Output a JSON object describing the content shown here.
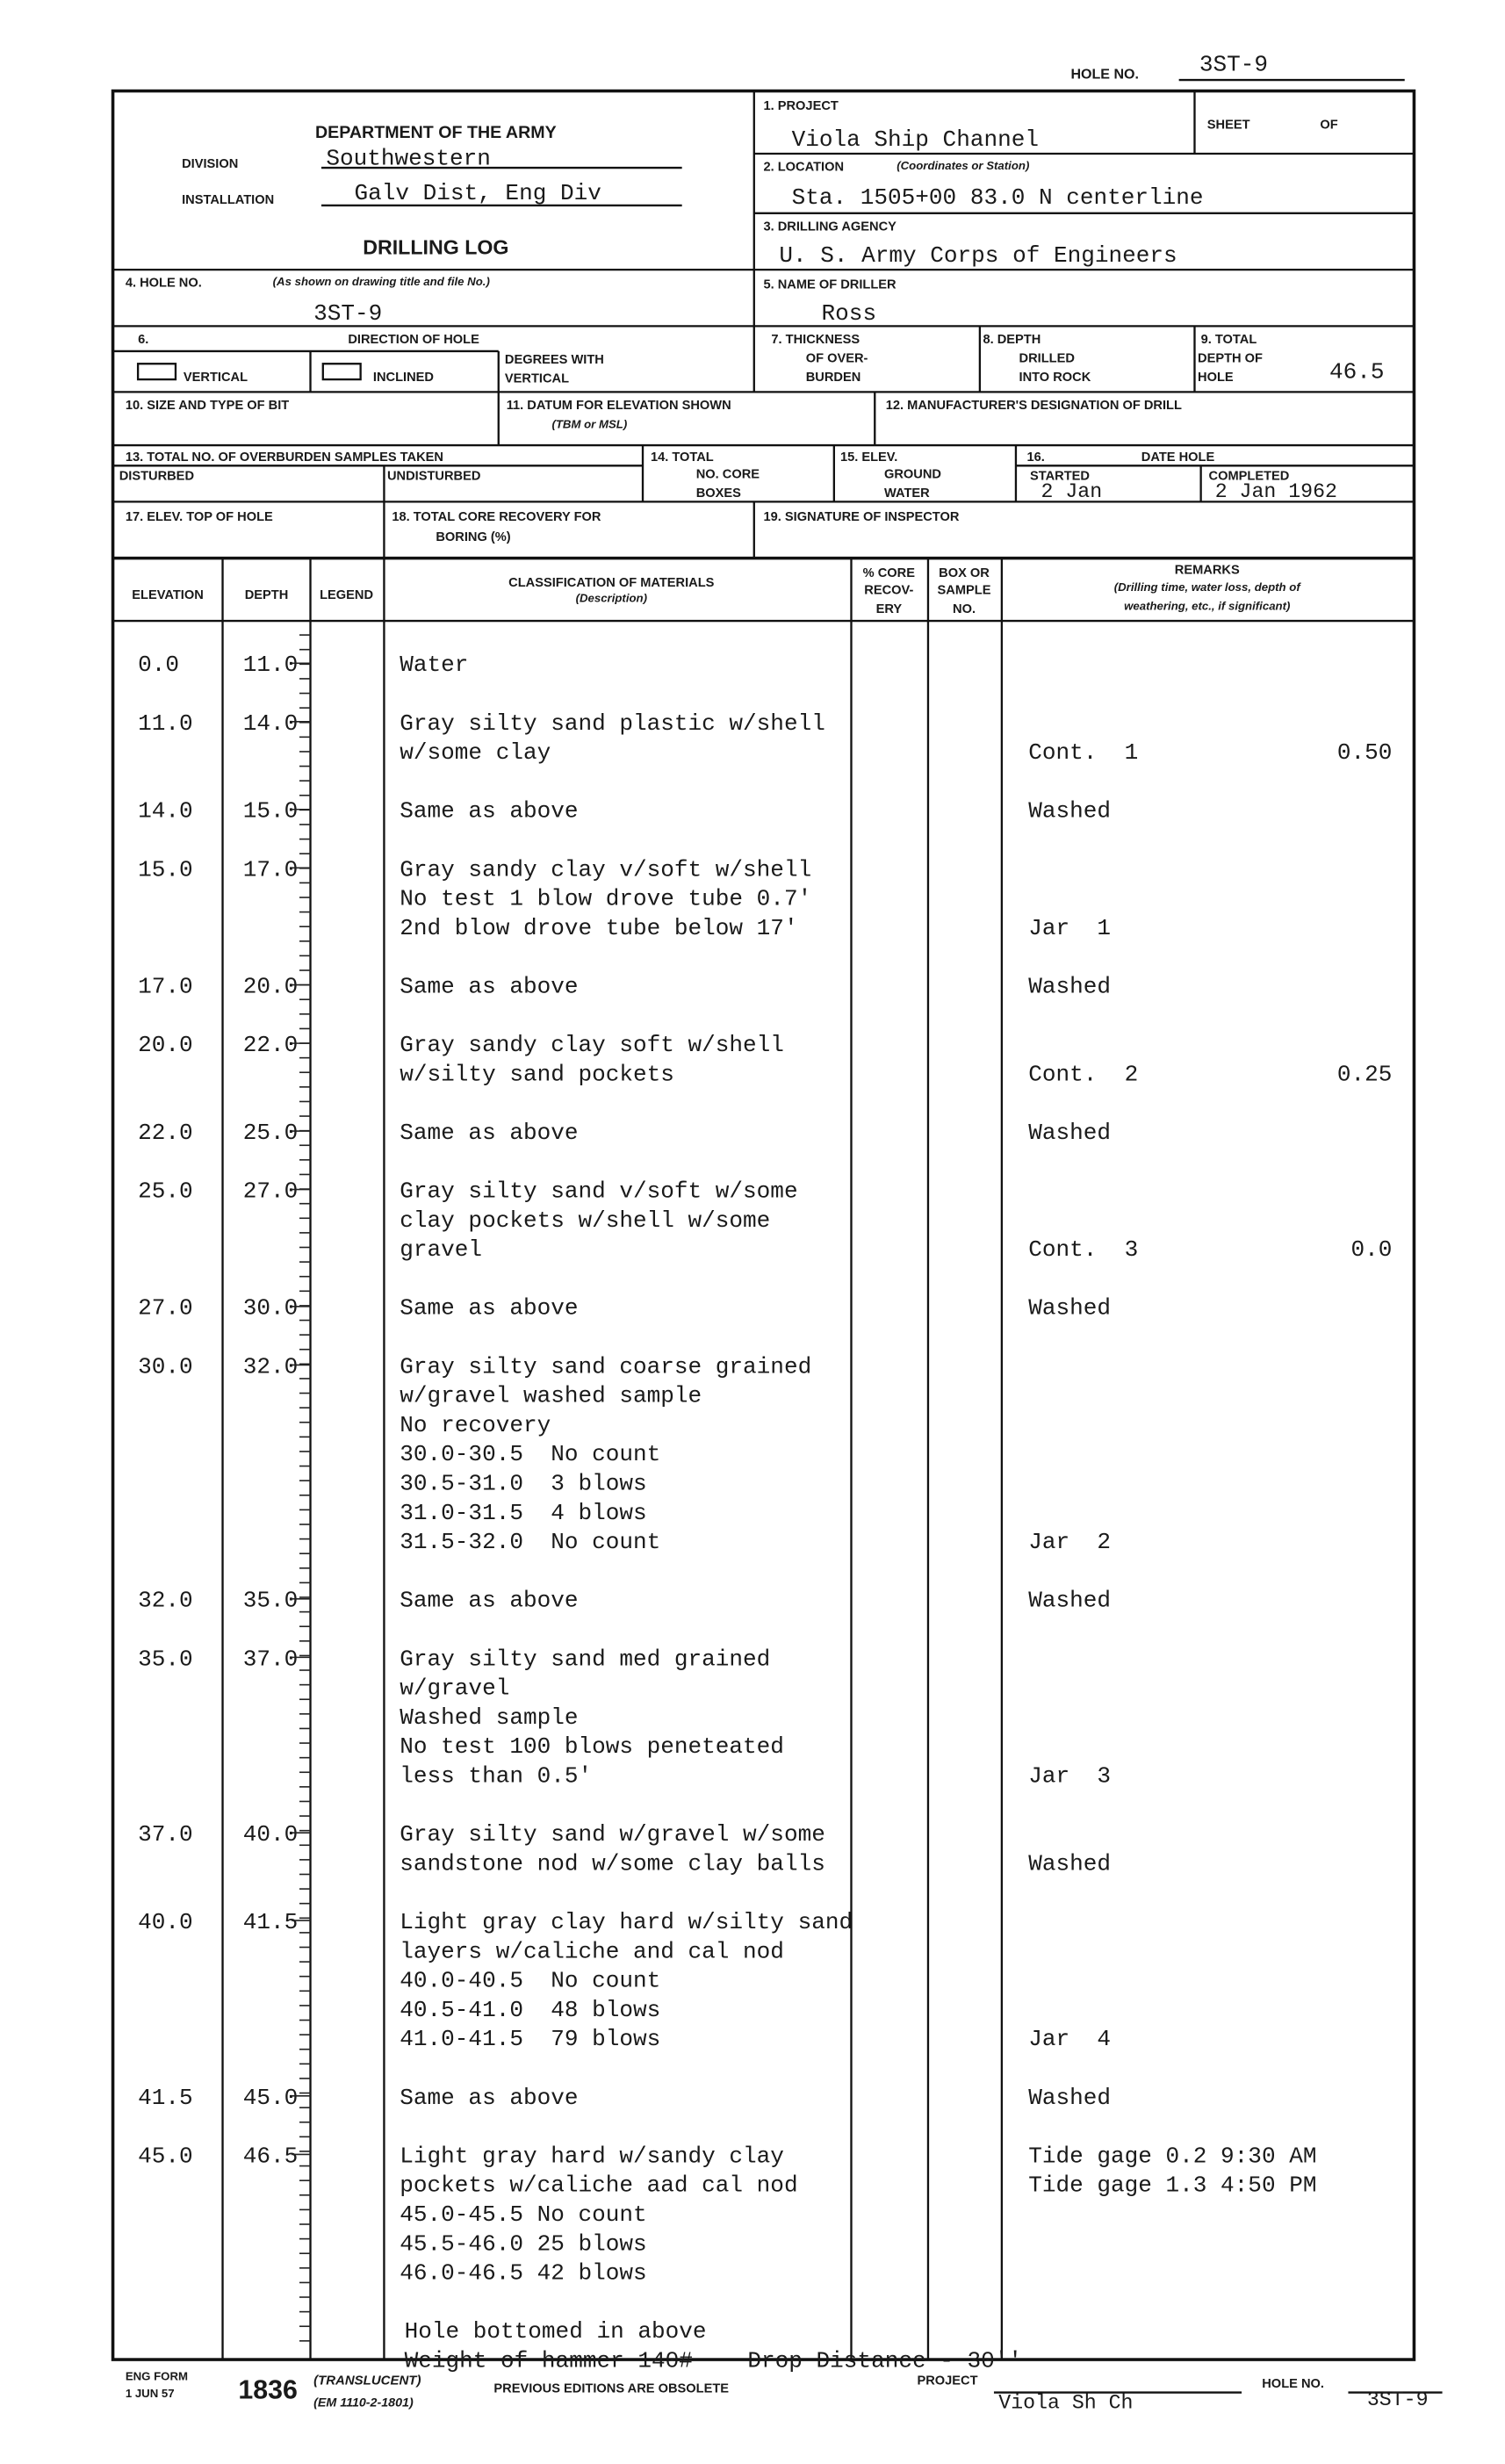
{
  "header": {
    "hole_no_label": "HOLE NO.",
    "hole_no": "3ST-9"
  },
  "form": {
    "department": "DEPARTMENT OF THE ARMY",
    "division_label": "DIVISION",
    "division": "Southwestern",
    "installation_label": "INSTALLATION",
    "installation": "Galv Dist, Eng Div",
    "title": "DRILLING LOG",
    "project_label": "1. PROJECT",
    "project": "Viola Ship Channel",
    "sheet_label": "SHEET",
    "of_label": "OF",
    "location_label": "2. LOCATION",
    "location_note": "(Coordinates or Station)",
    "location": "Sta. 1505+00 83.0 N centerline",
    "agency_label": "3. DRILLING AGENCY",
    "agency": "U. S. Army Corps of Engineers",
    "hole_no_label": "4. HOLE NO.",
    "hole_no_note": "(As shown on drawing title and file No.)",
    "hole_no": "3ST-9",
    "driller_label": "5. NAME OF DRILLER",
    "driller": "Ross",
    "direction_number": "6.",
    "direction_label": "DIRECTION OF HOLE",
    "vertical_label": "VERTICAL",
    "inclined_label": "INCLINED",
    "degrees_label": [
      "DEGREES WITH",
      "VERTICAL"
    ],
    "thickness_label": [
      "7. THICKNESS",
      "OF OVER-",
      "BURDEN"
    ],
    "depth_rock_label": [
      "8. DEPTH",
      "DRILLED",
      "INTO ROCK"
    ],
    "total_depth_label": [
      "9. TOTAL",
      "DEPTH OF",
      "HOLE"
    ],
    "total_depth": "46.5",
    "bit_label": "10. SIZE AND TYPE OF BIT",
    "datum_label": "11. DATUM FOR ELEVATION SHOWN",
    "datum_note": "(TBM or MSL)",
    "drill_label": "12. MANUFACTURER'S DESIGNATION OF DRILL",
    "samples_label": "13. TOTAL NO. OF OVERBURDEN SAMPLES TAKEN",
    "disturbed_label": "DISTURBED",
    "undisturbed_label": "UNDISTURBED",
    "core_boxes_label": [
      "14. TOTAL",
      "NO. CORE",
      "BOXES"
    ],
    "ground_water_label": [
      "15. ELEV.",
      "GROUND",
      "WATER"
    ],
    "date_number": "16.",
    "date_label": "DATE HOLE",
    "started_label": "STARTED",
    "started": "2 Jan",
    "completed_label": "COMPLETED",
    "completed": "2 Jan 1962",
    "elev_top_label": "17. ELEV. TOP OF HOLE",
    "core_recovery_label": [
      "18. TOTAL CORE RECOVERY FOR",
      "BORING (%)"
    ],
    "signature_label": "19. SIGNATURE OF INSPECTOR"
  },
  "columns": {
    "elevation": "ELEVATION",
    "depth": "DEPTH",
    "legend": "LEGEND",
    "classification": "CLASSIFICATION OF MATERIALS",
    "classification_note": "(Description)",
    "core_recovery": [
      "% CORE",
      "RECOV-",
      "ERY"
    ],
    "box": [
      "BOX OR",
      "SAMPLE",
      "NO."
    ],
    "remarks": "REMARKS",
    "remarks_note": [
      "(Drilling time, water loss, depth of",
      "weathering, etc., if significant)"
    ]
  },
  "log": {
    "rows": [
      {
        "elevation": "0.0",
        "depth": "11.0",
        "description": [
          "Water"
        ]
      },
      {
        "elevation": "11.0",
        "depth": "14.0",
        "description": [
          "Gray silty sand plastic w/shell",
          "w/some clay"
        ],
        "remarks": [
          "Cont.  1"
        ],
        "remark_value": "0.50"
      },
      {
        "elevation": "14.0",
        "depth": "15.0",
        "description": [
          "Same as above"
        ],
        "remarks": [
          "Washed"
        ]
      },
      {
        "elevation": "15.0",
        "depth": "17.0",
        "description": [
          "Gray sandy clay v/soft w/shell",
          "No test 1 blow drove tube 0.7'",
          "2nd blow drove tube below 17'"
        ],
        "remarks": [
          "Jar  1"
        ]
      },
      {
        "elevation": "17.0",
        "depth": "20.0",
        "description": [
          "Same as above"
        ],
        "remarks": [
          "Washed"
        ]
      },
      {
        "elevation": "20.0",
        "depth": "22.0",
        "description": [
          "Gray sandy clay soft w/shell",
          "w/silty sand pockets"
        ],
        "remarks": [
          "Cont.  2"
        ],
        "remark_value": "0.25"
      },
      {
        "elevation": "22.0",
        "depth": "25.0",
        "description": [
          "Same as above"
        ],
        "remarks": [
          "Washed"
        ]
      },
      {
        "elevation": "25.0",
        "depth": "27.0",
        "description": [
          "Gray silty sand v/soft w/some",
          "clay pockets w/shell w/some",
          "gravel"
        ],
        "remarks": [
          "Cont.  3"
        ],
        "remark_value": "0.0"
      },
      {
        "elevation": "27.0",
        "depth": "30.0",
        "description": [
          "Same as above"
        ],
        "remarks": [
          "Washed"
        ]
      },
      {
        "elevation": "30.0",
        "depth": "32.0",
        "description": [
          "Gray silty sand coarse grained",
          "w/gravel washed sample",
          "No recovery",
          "30.0-30.5  No count",
          "30.5-31.0  3 blows",
          "31.0-31.5  4 blows",
          "31.5-32.0  No count"
        ],
        "remarks": [
          "Jar  2"
        ]
      },
      {
        "elevation": "32.0",
        "depth": "35.0",
        "description": [
          "Same as above"
        ],
        "remarks": [
          "Washed"
        ]
      },
      {
        "elevation": "35.0",
        "depth": "37.0",
        "description": [
          "Gray silty sand med grained",
          "w/gravel",
          "Washed sample",
          "No test 100 blows peneteated",
          "less than 0.5'"
        ],
        "remarks": [
          "Jar  3"
        ]
      },
      {
        "elevation": "37.0",
        "depth": "40.0",
        "description": [
          "Gray silty sand w/gravel w/some",
          "sandstone nod w/some clay balls"
        ],
        "remarks": [
          "Washed"
        ]
      },
      {
        "elevation": "40.0",
        "depth": "41.5",
        "description": [
          "Light gray clay hard w/silty sand",
          "layers w/caliche and cal nod",
          "40.0-40.5  No count",
          "40.5-41.0  48 blows",
          "41.0-41.5  79 blows"
        ],
        "remarks": [
          "Jar  4"
        ]
      },
      {
        "elevation": "41.5",
        "depth": "45.0",
        "description": [
          "Same as above"
        ],
        "remarks": [
          "Washed"
        ]
      },
      {
        "elevation": "45.0",
        "depth": "46.5",
        "description": [
          "Light gray hard w/sandy clay",
          "pockets w/caliche aad cal nod",
          "45.0-45.5 No count",
          "45.5-46.0 25 blows",
          "46.0-46.5 42 blows"
        ],
        "remarks": [
          "Tide gage 0.2 9:30 AM",
          "Tide gage 1.3 4:50 PM"
        ]
      }
    ],
    "closing": [
      "Hole bottomed in above",
      "Weight of hammer 140#    Drop Distance - 30''"
    ]
  },
  "footer": {
    "form_label": "ENG FORM",
    "form_date": "1 JUN 57",
    "form_number": "1836",
    "translucent": "(TRANSLUCENT)",
    "em": "(EM 1110-2-1801)",
    "obsolete": "PREVIOUS EDITIONS ARE OBSOLETE",
    "project_label": "PROJECT",
    "project": "Viola Sh Ch",
    "hole_no_label": "HOLE NO.",
    "hole_no": "3ST-9"
  }
}
